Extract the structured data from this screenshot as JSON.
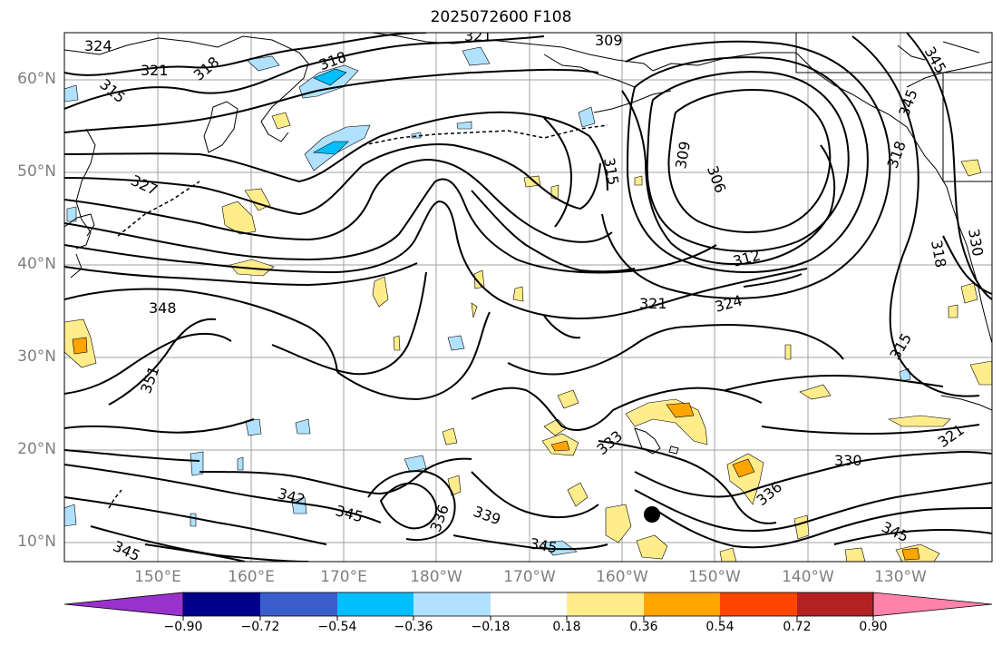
{
  "title": "2025072600 F108",
  "map": {
    "lat_labels": [
      "60°N",
      "50°N",
      "40°N",
      "30°N",
      "20°N",
      "10°N"
    ],
    "lon_labels": [
      "150°E",
      "160°E",
      "170°E",
      "180°W",
      "170°W",
      "160°W",
      "150°W",
      "140°W",
      "130°W"
    ],
    "contour_labels": [
      "324",
      "321",
      "318",
      "315",
      "312",
      "309",
      "327",
      "348",
      "351",
      "342",
      "345",
      "336",
      "339",
      "333",
      "330",
      "306",
      "321",
      "324",
      "315",
      "312",
      "345",
      "321",
      "318",
      "345"
    ],
    "contour_color": "#000000",
    "coast_color": "#000000",
    "grid_color": "#a0a0a0"
  },
  "colorbar": {
    "tick_labels": [
      "−0.90",
      "−0.72",
      "−0.54",
      "−0.36",
      "−0.18",
      "0.18",
      "0.36",
      "0.54",
      "0.72",
      "0.90"
    ],
    "colors": [
      "#9932cc",
      "#9932cc",
      "#00008b",
      "#3a5fcd",
      "#00bfff",
      "#b0e2ff",
      "#ffffff",
      "#ffec8b",
      "#ffa500",
      "#ff4500",
      "#b22222",
      "#ff82ab",
      "#ff82ab"
    ]
  }
}
